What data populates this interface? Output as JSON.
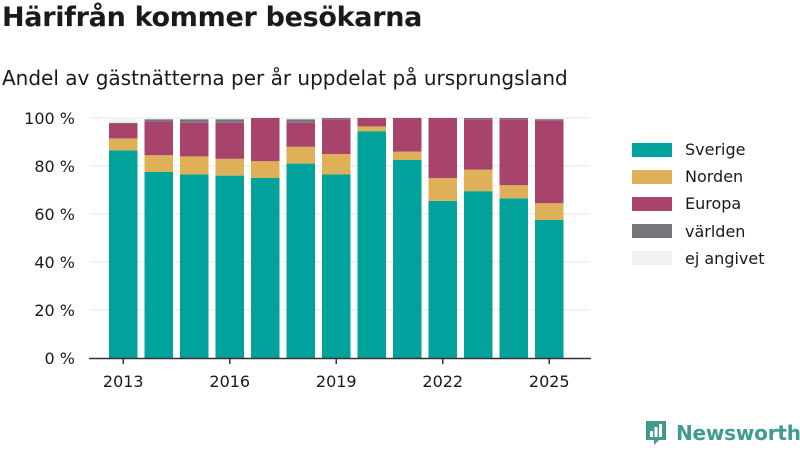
{
  "header": {
    "title": "Härifrån kommer besökarna",
    "subtitle": "Andel av gästnätterna per år uppdelat på ursprungsland"
  },
  "brand": {
    "name": "Newsworthy",
    "icon": "newsworthy-logo-icon"
  },
  "colors": {
    "Sverige": "#00a29b",
    "Norden": "#deb058",
    "Europa": "#a8436b",
    "världen": "#76767a",
    "ej angivet": "#f1f0f3",
    "axis": "#333333",
    "grid": "#e6e6e6"
  },
  "chart_data": {
    "type": "bar",
    "stacked": true,
    "x": [
      2013,
      2014,
      2015,
      2016,
      2017,
      2018,
      2019,
      2020,
      2021,
      2022,
      2023,
      2024,
      2025
    ],
    "x_ticks": [
      "2013",
      "2016",
      "2019",
      "2022",
      "2025"
    ],
    "y_ticks": [
      "0 %",
      "20 %",
      "40 %",
      "60 %",
      "80 %",
      "100 %"
    ],
    "ylim": [
      0,
      100
    ],
    "y_unit": "%",
    "grid": "horizontal",
    "legend_position": "right",
    "series": [
      {
        "name": "Sverige",
        "values": [
          86.5,
          77.5,
          76.5,
          76,
          75,
          81,
          76.5,
          94.5,
          82.5,
          65.5,
          69.5,
          66.5,
          57.5
        ]
      },
      {
        "name": "Norden",
        "values": [
          5,
          7,
          7.5,
          7,
          7,
          7,
          8.5,
          2,
          3.5,
          9.5,
          9,
          5.5,
          7
        ]
      },
      {
        "name": "Europa",
        "values": [
          6,
          14,
          14,
          15,
          18,
          10,
          14.5,
          3.5,
          14,
          25,
          21,
          27.5,
          34.5
        ]
      },
      {
        "name": "världen",
        "values": [
          0.5,
          1,
          1.5,
          1.5,
          0,
          1.5,
          0.5,
          0,
          0,
          0,
          0.5,
          0.5,
          0.5
        ]
      },
      {
        "name": "ej angivet",
        "values": [
          1.5,
          0.5,
          0.5,
          0.5,
          0,
          0.5,
          0,
          0,
          0,
          0,
          0,
          0,
          0
        ]
      }
    ]
  }
}
